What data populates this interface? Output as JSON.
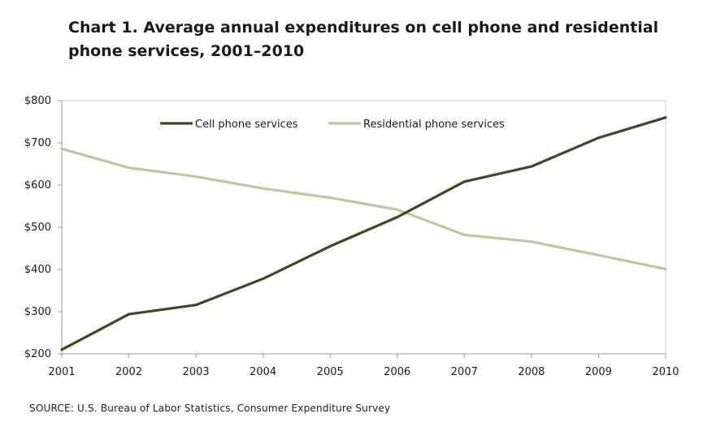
{
  "chart_data": {
    "type": "line",
    "title_line1": "Chart 1.  Average annual expenditures on cell phone and residential",
    "title_line2": "phone services, 2001–2010",
    "x": [
      "2001",
      "2002",
      "2003",
      "2004",
      "2005",
      "2006",
      "2007",
      "2008",
      "2009",
      "2010"
    ],
    "y_ticks": [
      "$200",
      "$300",
      "$400",
      "$500",
      "$600",
      "$700",
      "$800"
    ],
    "ylim": [
      200,
      800
    ],
    "grid": false,
    "legend_position": "top-center",
    "series": [
      {
        "name": "Cell phone services",
        "color": "#3b4a24",
        "values": [
          210,
          294,
          316,
          378,
          455,
          524,
          608,
          644,
          712,
          760
        ]
      },
      {
        "name": "Residential phone services",
        "color": "#c6c2a0",
        "values": [
          686,
          641,
          620,
          592,
          570,
          542,
          482,
          466,
          434,
          401
        ]
      }
    ],
    "source": "SOURCE: U.S. Bureau of Labor Statistics,  Consumer Expenditure Survey"
  }
}
